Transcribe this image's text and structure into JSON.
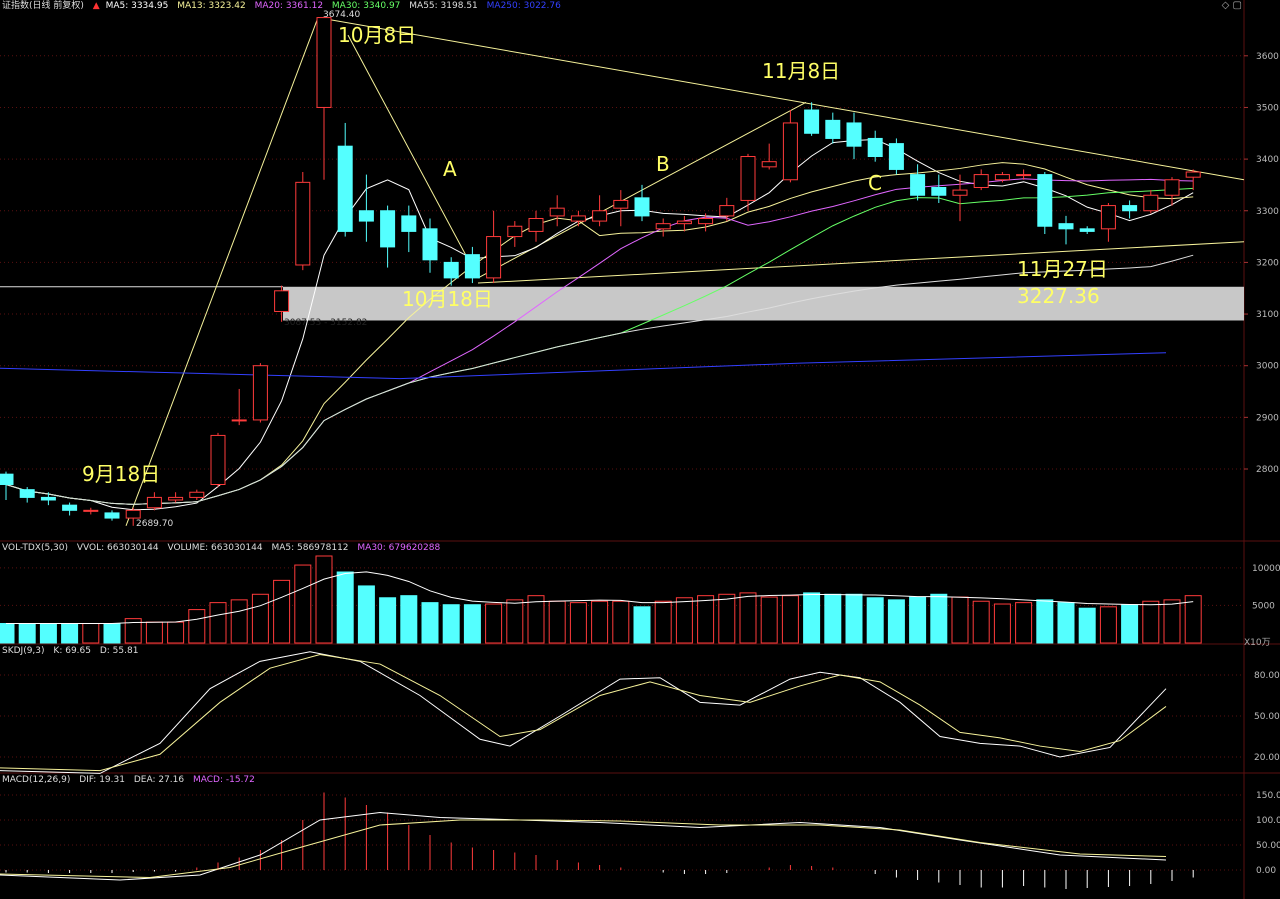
{
  "colors": {
    "up": "#ff3b3b",
    "down": "#54ffff",
    "ma5": "#ffffff",
    "ma13": "#f6f29a",
    "ma20": "#e066ff",
    "ma30": "#66ff66",
    "ma55": "#dddddd",
    "ma250": "#3340ff",
    "grid": "#5a1010",
    "annot": "#ffff66"
  },
  "header": {
    "title": "证指数(日线 前复权)",
    "ma5": "MA5: 3334.95",
    "ma13": "MA13: 3323.42",
    "ma20": "MA20: 3361.12",
    "ma30": "MA30: 3340.97",
    "ma55": "MA55: 3198.51",
    "ma250": "MA250: 3022.76"
  },
  "vol_header": {
    "name": "VOL-TDX(5,30)",
    "vvol": "VVOL: 663030144",
    "volume": "VOLUME: 663030144",
    "ma5": "MA5: 586978112",
    "ma30": "MA30: 679620288"
  },
  "kdj_header": {
    "name": "SKDJ(9,3)",
    "k": "K: 69.65",
    "d": "D: 55.81"
  },
  "macd_header": {
    "name": "MACD(12,26,9)",
    "dif": "DIF: 19.31",
    "dea": "DEA: 27.16",
    "macd": "MACD: -15.72"
  },
  "annotations": {
    "oct8": "10月8日",
    "nov8": "11月8日",
    "sep18": "9月18日",
    "oct18": "10月18日",
    "nov27": "11月27日",
    "nov27_value": "3227.36",
    "a": "A",
    "b": "B",
    "c": "C"
  },
  "labels": {
    "high": "3674.40",
    "low": "2689.70",
    "band": "3087.53 - 3152.82",
    "vol_unit": "X10万"
  },
  "chart_data": {
    "type": "candlestick",
    "price_axis": {
      "ticks": [
        3600,
        3500,
        3400,
        3300,
        3200,
        3100,
        3000,
        2900,
        2800
      ]
    },
    "candles": [
      [
        2790,
        2770,
        2795,
        2740
      ],
      [
        2760,
        2745,
        2765,
        2735
      ],
      [
        2745,
        2740,
        2755,
        2730
      ],
      [
        2730,
        2720,
        2735,
        2710
      ],
      [
        2718,
        2720,
        2725,
        2712
      ],
      [
        2715,
        2705,
        2720,
        2700
      ],
      [
        2705,
        2720,
        2725,
        2690
      ],
      [
        2725,
        2745,
        2755,
        2720
      ],
      [
        2740,
        2745,
        2755,
        2735
      ],
      [
        2745,
        2755,
        2760,
        2740
      ],
      [
        2770,
        2865,
        2870,
        2765
      ],
      [
        2895,
        2895,
        2955,
        2885
      ],
      [
        2895,
        3000,
        3005,
        2890
      ],
      [
        3105,
        3145,
        3155,
        3085
      ],
      [
        3195,
        3355,
        3375,
        3185
      ],
      [
        3500,
        3674,
        3674,
        3360
      ],
      [
        3425,
        3260,
        3470,
        3250
      ],
      [
        3300,
        3280,
        3370,
        3240
      ],
      [
        3300,
        3230,
        3310,
        3190
      ],
      [
        3290,
        3260,
        3310,
        3220
      ],
      [
        3265,
        3205,
        3285,
        3180
      ],
      [
        3200,
        3170,
        3210,
        3155
      ],
      [
        3215,
        3170,
        3230,
        3160
      ],
      [
        3170,
        3250,
        3300,
        3160
      ],
      [
        3250,
        3270,
        3280,
        3230
      ],
      [
        3260,
        3285,
        3300,
        3240
      ],
      [
        3290,
        3305,
        3330,
        3270
      ],
      [
        3280,
        3290,
        3300,
        3270
      ],
      [
        3280,
        3300,
        3330,
        3270
      ],
      [
        3305,
        3320,
        3340,
        3270
      ],
      [
        3325,
        3290,
        3350,
        3280
      ],
      [
        3265,
        3275,
        3285,
        3250
      ],
      [
        3275,
        3280,
        3290,
        3260
      ],
      [
        3275,
        3285,
        3295,
        3260
      ],
      [
        3290,
        3310,
        3325,
        3280
      ],
      [
        3320,
        3405,
        3410,
        3300
      ],
      [
        3385,
        3395,
        3430,
        3380
      ],
      [
        3360,
        3470,
        3495,
        3355
      ],
      [
        3495,
        3450,
        3510,
        3445
      ],
      [
        3475,
        3440,
        3490,
        3430
      ],
      [
        3470,
        3425,
        3490,
        3400
      ],
      [
        3440,
        3405,
        3455,
        3395
      ],
      [
        3430,
        3380,
        3440,
        3370
      ],
      [
        3370,
        3330,
        3390,
        3320
      ],
      [
        3345,
        3330,
        3370,
        3315
      ],
      [
        3330,
        3340,
        3370,
        3280
      ],
      [
        3345,
        3370,
        3380,
        3340
      ],
      [
        3360,
        3370,
        3375,
        3355
      ],
      [
        3370,
        3370,
        3380,
        3360
      ],
      [
        3370,
        3270,
        3375,
        3255
      ],
      [
        3275,
        3265,
        3290,
        3235
      ],
      [
        3265,
        3260,
        3270,
        3255
      ],
      [
        3265,
        3310,
        3315,
        3240
      ],
      [
        3310,
        3300,
        3320,
        3285
      ],
      [
        3300,
        3330,
        3340,
        3295
      ],
      [
        3330,
        3360,
        3365,
        3310
      ],
      [
        3365,
        3375,
        3380,
        3340
      ]
    ],
    "volume": [
      28,
      28,
      28,
      28,
      28,
      28,
      35,
      30,
      30,
      48,
      58,
      62,
      70,
      90,
      112,
      125,
      102,
      82,
      65,
      68,
      58,
      55,
      55,
      56,
      62,
      68,
      60,
      58,
      60,
      60,
      52,
      60,
      65,
      68,
      70,
      72,
      66,
      68,
      72,
      70,
      70,
      65,
      62,
      66,
      70,
      66,
      60,
      56,
      58,
      62,
      58,
      50,
      52,
      55,
      60,
      62,
      68
    ],
    "volume_axis": {
      "ticks": [
        10000,
        5000
      ]
    },
    "kdj_axis": {
      "ticks": [
        80.0,
        50.0,
        20.0
      ]
    },
    "macd_axis": {
      "ticks": [
        150.0,
        100.0,
        50.0,
        0.0
      ]
    }
  }
}
